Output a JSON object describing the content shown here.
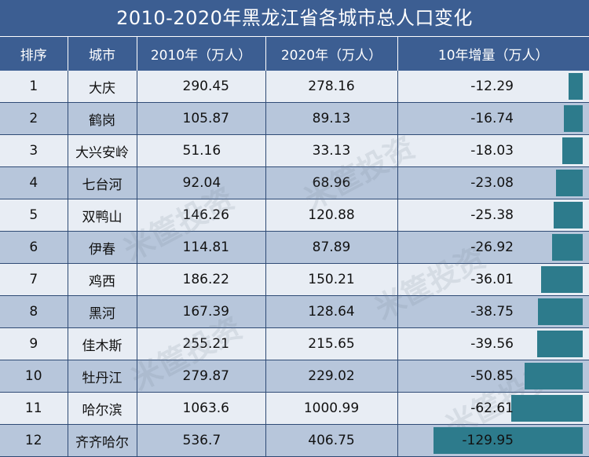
{
  "title": "2010-2020年黑龙江省各城市总人口变化",
  "colors": {
    "header_bg": "#3c5e92",
    "bar": "#2d7b8c",
    "row_light": "#e8edf4",
    "row_dark": "#b7c6db"
  },
  "watermark_text": "米筐投资",
  "chart_data": {
    "type": "table",
    "title": "2010-2020年黑龙江省各城市总人口变化",
    "columns": [
      "排序",
      "城市",
      "2010年（万人）",
      "2020年（万人）",
      "10年增量（万人）"
    ],
    "rows": [
      {
        "rank": "1",
        "city": "大庆",
        "pop2010": "290.45",
        "pop2020": "278.16",
        "delta": "-12.29",
        "delta_value": -12.29
      },
      {
        "rank": "2",
        "city": "鹤岗",
        "pop2010": "105.87",
        "pop2020": "89.13",
        "delta": "-16.74",
        "delta_value": -16.74
      },
      {
        "rank": "3",
        "city": "大兴安岭",
        "pop2010": "51.16",
        "pop2020": "33.13",
        "delta": "-18.03",
        "delta_value": -18.03
      },
      {
        "rank": "4",
        "city": "七台河",
        "pop2010": "92.04",
        "pop2020": "68.96",
        "delta": "-23.08",
        "delta_value": -23.08
      },
      {
        "rank": "5",
        "city": "双鸭山",
        "pop2010": "146.26",
        "pop2020": "120.88",
        "delta": "-25.38",
        "delta_value": -25.38
      },
      {
        "rank": "6",
        "city": "伊春",
        "pop2010": "114.81",
        "pop2020": "87.89",
        "delta": "-26.92",
        "delta_value": -26.92
      },
      {
        "rank": "7",
        "city": "鸡西",
        "pop2010": "186.22",
        "pop2020": "150.21",
        "delta": "-36.01",
        "delta_value": -36.01
      },
      {
        "rank": "8",
        "city": "黑河",
        "pop2010": "167.39",
        "pop2020": "128.64",
        "delta": "-38.75",
        "delta_value": -38.75
      },
      {
        "rank": "9",
        "city": "佳木斯",
        "pop2010": "255.21",
        "pop2020": "215.65",
        "delta": "-39.56",
        "delta_value": -39.56
      },
      {
        "rank": "10",
        "city": "牡丹江",
        "pop2010": "279.87",
        "pop2020": "229.02",
        "delta": "-50.85",
        "delta_value": -50.85
      },
      {
        "rank": "11",
        "city": "哈尔滨",
        "pop2010": "1063.6",
        "pop2020": "1000.99",
        "delta": "-62.61",
        "delta_value": -62.61
      },
      {
        "rank": "12",
        "city": "齐齐哈尔",
        "pop2010": "536.7",
        "pop2020": "406.75",
        "delta": "-129.95",
        "delta_value": -129.95
      }
    ],
    "bar_scale_max": 130
  }
}
